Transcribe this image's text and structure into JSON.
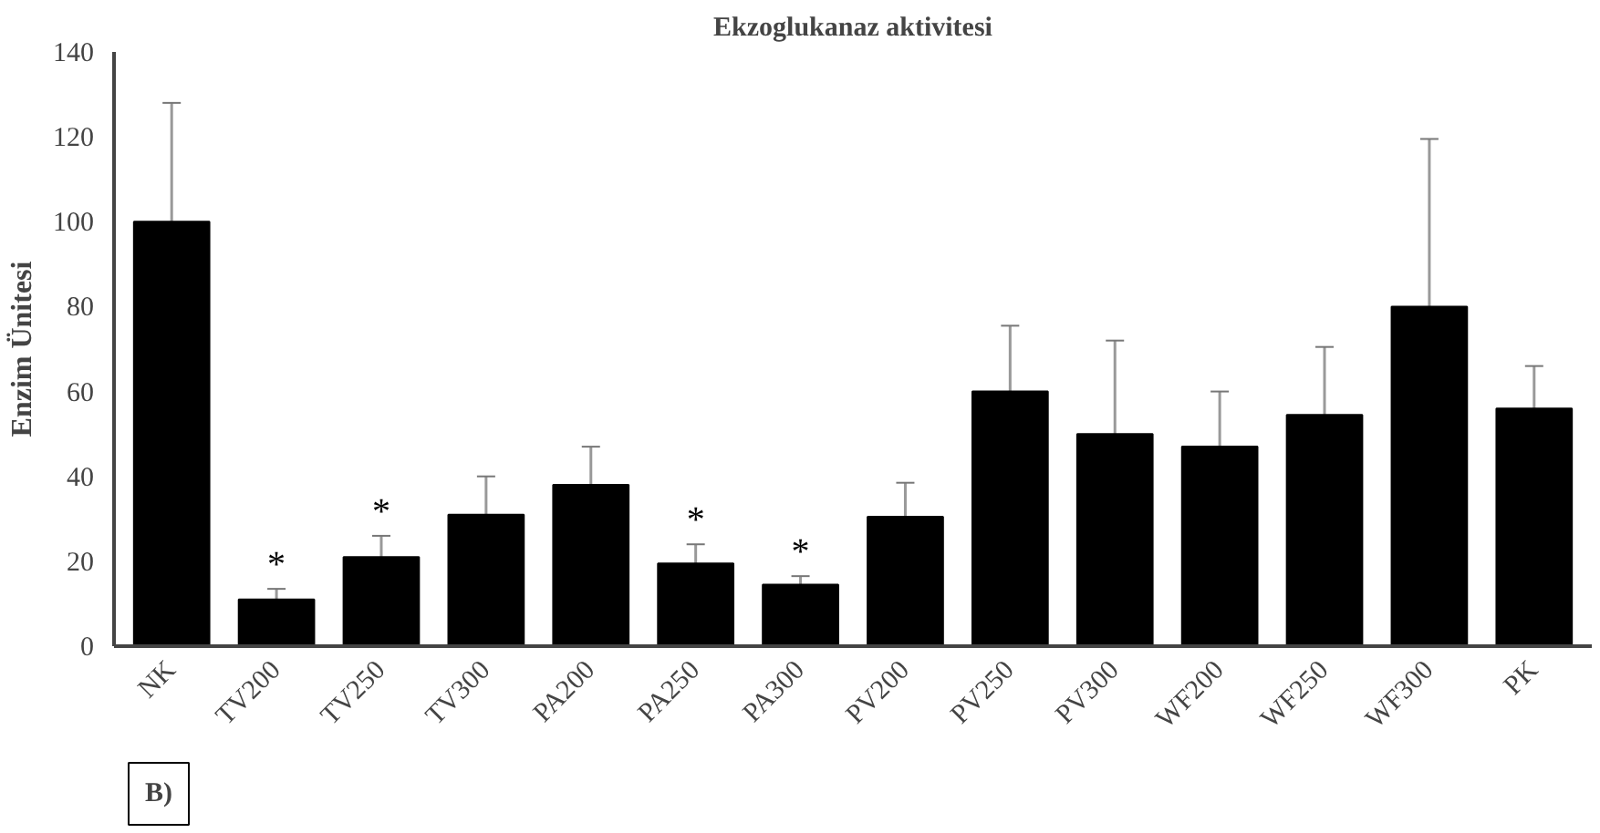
{
  "chart_data": {
    "type": "bar",
    "title": "Ekzoglukanaz aktivitesi",
    "ylabel": "Enzim Ünitesi",
    "categories": [
      "NK",
      "TV200",
      "TV250",
      "TV300",
      "PA200",
      "PA250",
      "PA300",
      "PV200",
      "PV250",
      "PV300",
      "WF200",
      "WF250",
      "WF300",
      "PK"
    ],
    "values": [
      100,
      11,
      21,
      31,
      38,
      19.5,
      14.5,
      30.5,
      60,
      50,
      47,
      54.5,
      80,
      56
    ],
    "errors": [
      28,
      2.5,
      5,
      9,
      9,
      4.5,
      2,
      8,
      15.5,
      22,
      13,
      16,
      39.5,
      10
    ],
    "color": "#000000",
    "ylim": [
      0,
      140
    ],
    "yticks": [
      0,
      20,
      40,
      60,
      80,
      100,
      120,
      140
    ],
    "grid": false,
    "annotations": [
      {
        "text": "*",
        "x": "TV200",
        "y": 13.5
      },
      {
        "text": "*",
        "x": "TV250",
        "y": 26
      },
      {
        "text": "*",
        "x": "PA250",
        "y": 24
      },
      {
        "text": "*",
        "x": "PA300",
        "y": 16.5
      },
      "B)"
    ]
  }
}
